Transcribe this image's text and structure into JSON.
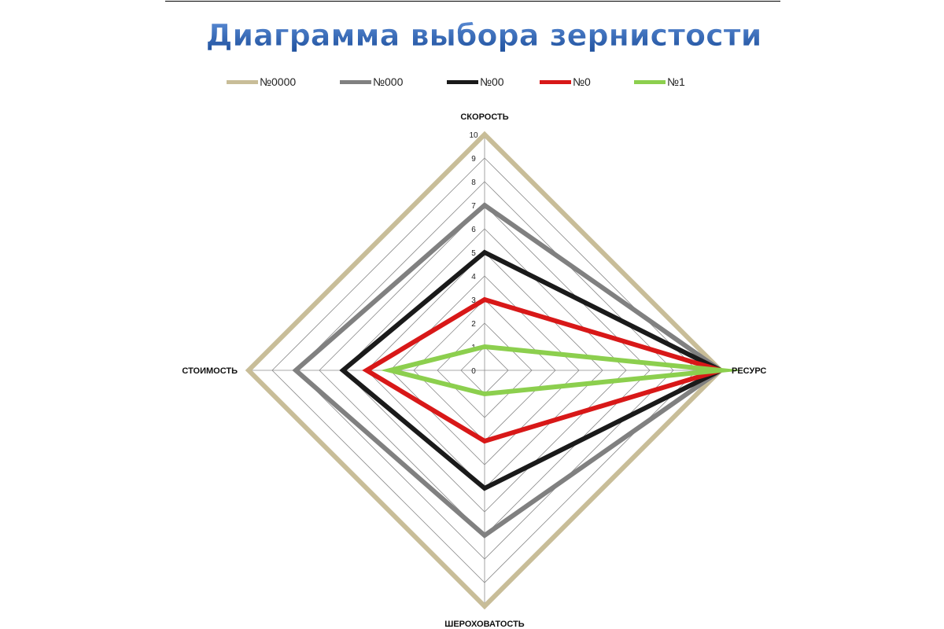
{
  "title": "Диаграмма выбора зернистости",
  "colors": {
    "title_top": "#5e8fd8",
    "title_bottom": "#1d4f9c",
    "grid": "#8c8c8c"
  },
  "chart_data": {
    "type": "radar",
    "title": "Диаграмма выбора зернистости",
    "axes": [
      "СКОРОСТЬ",
      "РЕСУРС",
      "ШЕРОХОВАТОСТЬ",
      "СТОИМОСТЬ"
    ],
    "rlim": [
      0,
      10
    ],
    "ticks": [
      0,
      1,
      2,
      3,
      4,
      5,
      6,
      7,
      8,
      9,
      10
    ],
    "grid": true,
    "legend_position": "top",
    "series": [
      {
        "name": "№0000",
        "color": "#c8bd98",
        "values": [
          10,
          10,
          10,
          10
        ]
      },
      {
        "name": "№000",
        "color": "#808080",
        "values": [
          7,
          10,
          7,
          8
        ]
      },
      {
        "name": "№00",
        "color": "#1a1a1a",
        "values": [
          5,
          10,
          5,
          6
        ]
      },
      {
        "name": "№0",
        "color": "#d81818",
        "values": [
          3,
          10,
          3,
          5
        ]
      },
      {
        "name": "№1",
        "color": "#8ccf4e",
        "values": [
          1,
          10,
          1,
          4
        ]
      }
    ]
  }
}
